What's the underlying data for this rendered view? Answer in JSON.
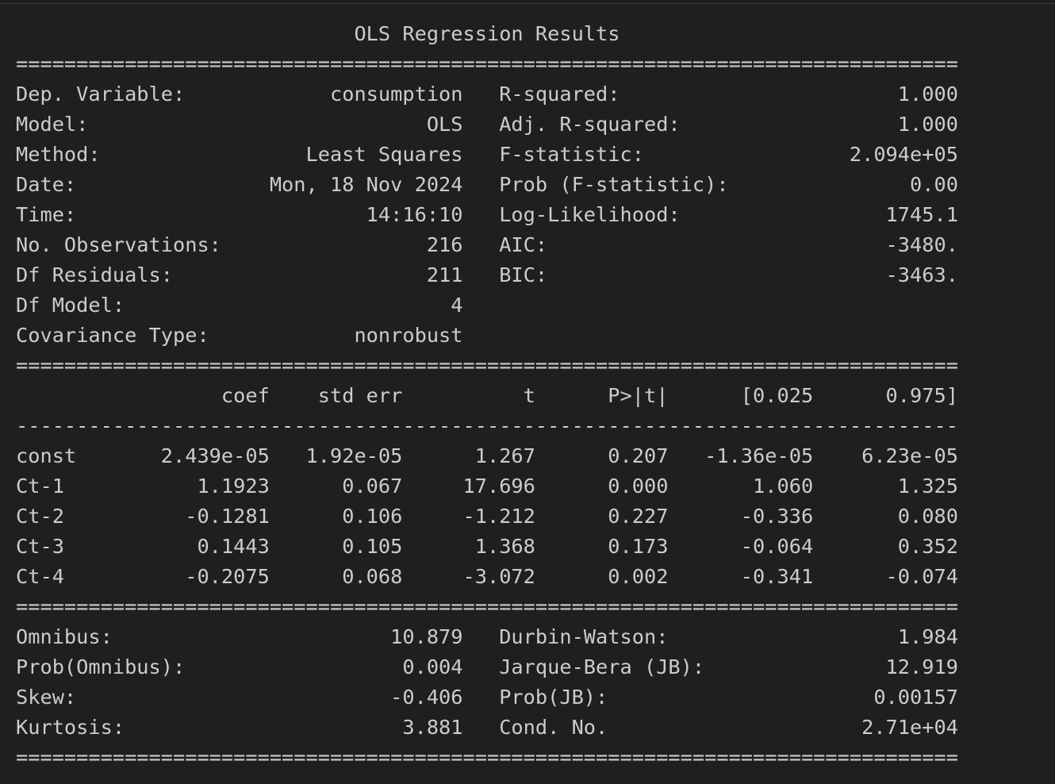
{
  "output": {
    "lines": [
      "                            OLS Regression Results                            ",
      "==============================================================================",
      "Dep. Variable:            consumption   R-squared:                       1.000",
      "Model:                            OLS   Adj. R-squared:                  1.000",
      "Method:                 Least Squares   F-statistic:                 2.094e+05",
      "Date:                Mon, 18 Nov 2024   Prob (F-statistic):               0.00",
      "Time:                        14:16:10   Log-Likelihood:                 1745.1",
      "No. Observations:                 216   AIC:                            -3480.",
      "Df Residuals:                     211   BIC:                            -3463.",
      "Df Model:                           4                                         ",
      "Covariance Type:            nonrobust                                         ",
      "==============================================================================",
      "                 coef    std err          t      P>|t|      [0.025      0.975]",
      "------------------------------------------------------------------------------",
      "const       2.439e-05   1.92e-05      1.267      0.207   -1.36e-05    6.23e-05",
      "Ct-1           1.1923      0.067     17.696      0.000       1.060       1.325",
      "Ct-2          -0.1281      0.106     -1.212      0.227      -0.336       0.080",
      "Ct-3           0.1443      0.105      1.368      0.173      -0.064       0.352",
      "Ct-4          -0.2075      0.068     -3.072      0.002      -0.341      -0.074",
      "==============================================================================",
      "Omnibus:                       10.879   Durbin-Watson:                   1.984",
      "Prob(Omnibus):                  0.004   Jarque-Bera (JB):               12.919",
      "Skew:                          -0.406   Prob(JB):                      0.00157",
      "Kurtosis:                       3.881   Cond. No.                     2.71e+04",
      "=============================================================================="
    ]
  }
}
